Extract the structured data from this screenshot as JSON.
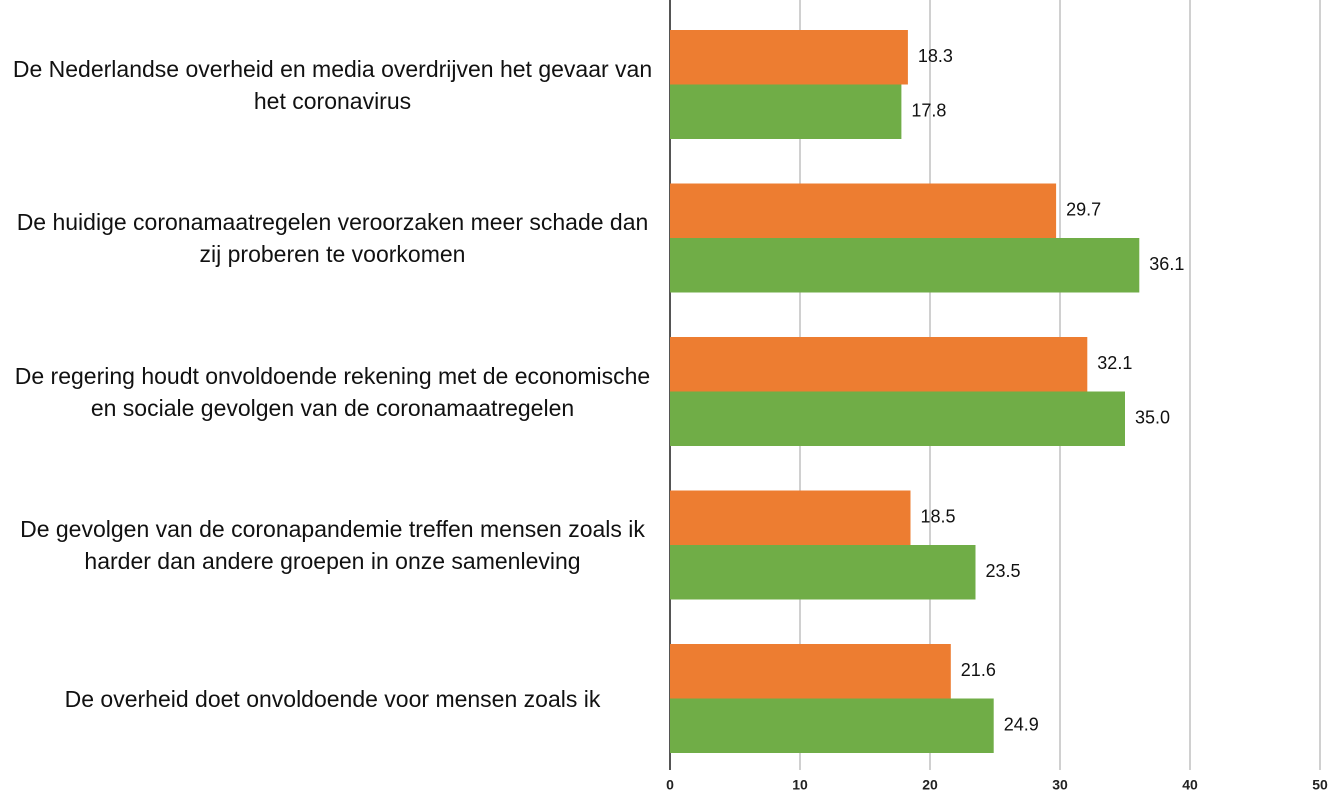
{
  "chart_data": {
    "type": "hbar",
    "categories": [
      "De Nederlandse overheid en media overdrijven het gevaar van het coronavirus",
      "De huidige coronamaatregelen veroorzaken meer schade dan zij proberen te voorkomen",
      "De regering houdt onvoldoende rekening met de economische en sociale gevolgen van de coronamaatregelen",
      "De gevolgen van de coronapandemie treffen mensen zoals ik harder dan andere groepen in onze samenleving",
      "De overheid doet onvoldoende voor mensen zoals ik"
    ],
    "series": [
      {
        "color": "#ed7d31",
        "values": [
          18.3,
          29.7,
          32.1,
          18.5,
          21.6
        ],
        "value_labels": [
          "18.3",
          "29.7",
          "32.1",
          "18.5",
          "21.6"
        ]
      },
      {
        "color": "#70ad47",
        "values": [
          17.8,
          36.1,
          35.0,
          23.5,
          24.9
        ],
        "value_labels": [
          "17.8",
          "36.1",
          "35.0",
          "23.5",
          "24.9"
        ]
      }
    ],
    "xlim": [
      0,
      50
    ],
    "xticks": [
      0,
      10,
      20,
      30,
      40,
      50
    ],
    "grid": true
  }
}
